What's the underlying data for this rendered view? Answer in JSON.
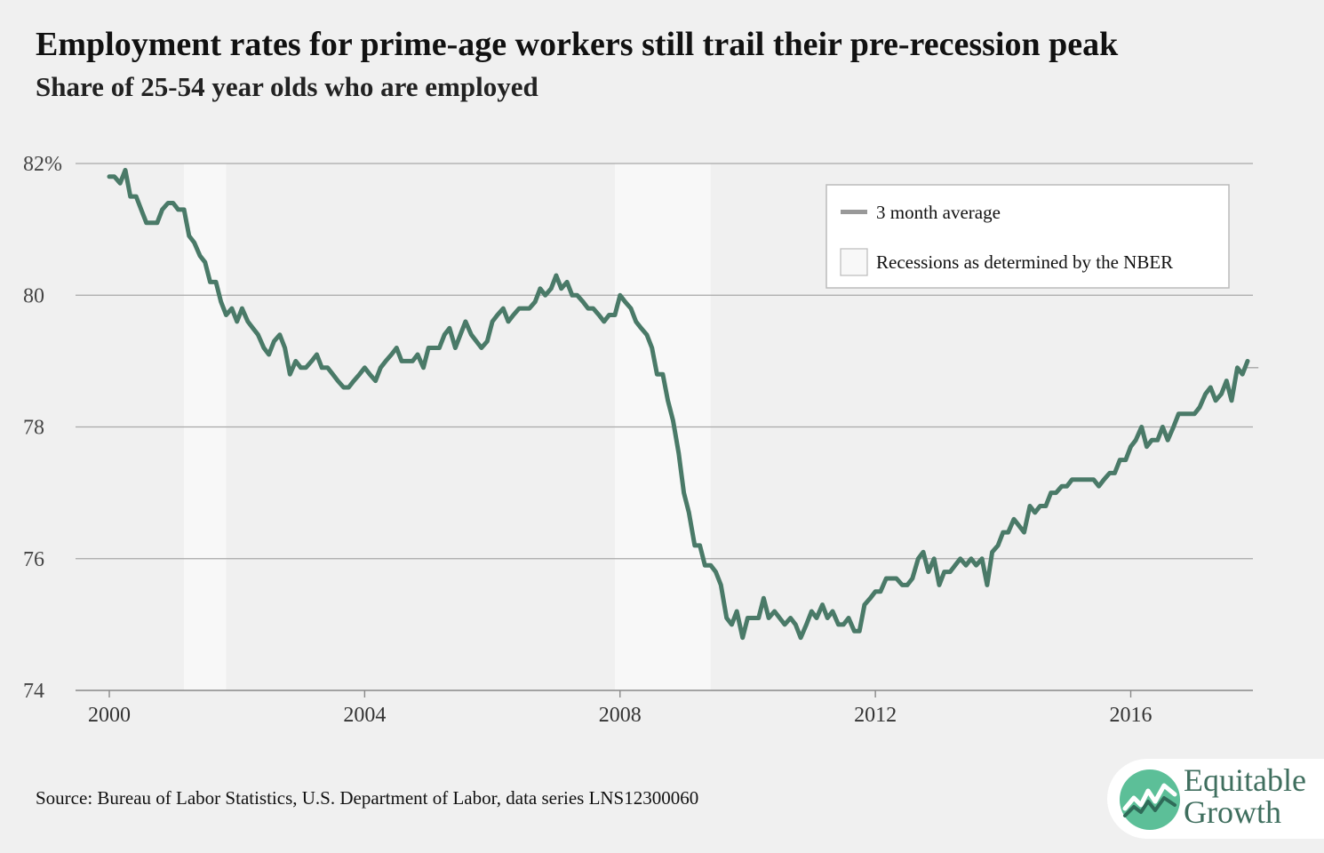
{
  "header": {
    "title": "Employment rates for prime-age workers still trail their pre-recession peak",
    "subtitle": "Share of 25-54 year olds who are employed"
  },
  "footer": {
    "source": "Source: Bureau of Labor Statistics, U.S. Department of Labor, data series LNS12300060"
  },
  "logo": {
    "line1": "Equitable",
    "line2": "Growth"
  },
  "colors": {
    "series": "#4a7a68",
    "recession": "#f8f8f8",
    "grid": "#a8a8a8",
    "background": "#f0f0f0",
    "logo": "#3f6e5e"
  },
  "chart_data": {
    "type": "line",
    "title": "Employment rates for prime-age workers still trail their pre-recession peak",
    "subtitle": "Share of 25-54 year olds who are employed",
    "xlabel": "",
    "ylabel": "",
    "xlim": [
      2000,
      2018
    ],
    "ylim": [
      74,
      82
    ],
    "y_ticks": [
      74,
      76,
      78,
      80,
      82
    ],
    "y_tick_labels": [
      "74",
      "76",
      "78",
      "80",
      "82%"
    ],
    "x_ticks": [
      2000,
      2004,
      2008,
      2012,
      2016
    ],
    "x_tick_labels": [
      "2000",
      "2004",
      "2008",
      "2012",
      "2016"
    ],
    "grid": "horizontal",
    "legend": {
      "placement": "top-right",
      "entries": [
        "3 month average",
        "Recessions as determined by the NBER"
      ]
    },
    "recessions": [
      {
        "start": 2001.17,
        "end": 2001.83
      },
      {
        "start": 2007.92,
        "end": 2009.42
      }
    ],
    "reference_line": {
      "y": 78.9,
      "x_start": 2017.8
    },
    "series": [
      {
        "name": "3 month average",
        "points": [
          [
            2000.0,
            81.8
          ],
          [
            2000.08,
            81.8
          ],
          [
            2000.17,
            81.7
          ],
          [
            2000.25,
            81.9
          ],
          [
            2000.33,
            81.5
          ],
          [
            2000.42,
            81.5
          ],
          [
            2000.5,
            81.3
          ],
          [
            2000.58,
            81.1
          ],
          [
            2000.67,
            81.1
          ],
          [
            2000.75,
            81.1
          ],
          [
            2000.83,
            81.3
          ],
          [
            2000.92,
            81.4
          ],
          [
            2001.0,
            81.4
          ],
          [
            2001.08,
            81.3
          ],
          [
            2001.17,
            81.3
          ],
          [
            2001.25,
            80.9
          ],
          [
            2001.33,
            80.8
          ],
          [
            2001.42,
            80.6
          ],
          [
            2001.5,
            80.5
          ],
          [
            2001.58,
            80.2
          ],
          [
            2001.67,
            80.2
          ],
          [
            2001.75,
            79.9
          ],
          [
            2001.83,
            79.7
          ],
          [
            2001.92,
            79.8
          ],
          [
            2002.0,
            79.6
          ],
          [
            2002.08,
            79.8
          ],
          [
            2002.17,
            79.6
          ],
          [
            2002.25,
            79.5
          ],
          [
            2002.33,
            79.4
          ],
          [
            2002.42,
            79.2
          ],
          [
            2002.5,
            79.1
          ],
          [
            2002.58,
            79.3
          ],
          [
            2002.67,
            79.4
          ],
          [
            2002.75,
            79.2
          ],
          [
            2002.83,
            78.8
          ],
          [
            2002.92,
            79.0
          ],
          [
            2003.0,
            78.9
          ],
          [
            2003.08,
            78.9
          ],
          [
            2003.17,
            79.0
          ],
          [
            2003.25,
            79.1
          ],
          [
            2003.33,
            78.9
          ],
          [
            2003.42,
            78.9
          ],
          [
            2003.5,
            78.8
          ],
          [
            2003.58,
            78.7
          ],
          [
            2003.67,
            78.6
          ],
          [
            2003.75,
            78.6
          ],
          [
            2003.83,
            78.7
          ],
          [
            2003.92,
            78.8
          ],
          [
            2004.0,
            78.9
          ],
          [
            2004.08,
            78.8
          ],
          [
            2004.17,
            78.7
          ],
          [
            2004.25,
            78.9
          ],
          [
            2004.33,
            79.0
          ],
          [
            2004.42,
            79.1
          ],
          [
            2004.5,
            79.2
          ],
          [
            2004.58,
            79.0
          ],
          [
            2004.67,
            79.0
          ],
          [
            2004.75,
            79.0
          ],
          [
            2004.83,
            79.1
          ],
          [
            2004.92,
            78.9
          ],
          [
            2005.0,
            79.2
          ],
          [
            2005.08,
            79.2
          ],
          [
            2005.17,
            79.2
          ],
          [
            2005.25,
            79.4
          ],
          [
            2005.33,
            79.5
          ],
          [
            2005.42,
            79.2
          ],
          [
            2005.5,
            79.4
          ],
          [
            2005.58,
            79.6
          ],
          [
            2005.67,
            79.4
          ],
          [
            2005.75,
            79.3
          ],
          [
            2005.83,
            79.2
          ],
          [
            2005.92,
            79.3
          ],
          [
            2006.0,
            79.6
          ],
          [
            2006.08,
            79.7
          ],
          [
            2006.17,
            79.8
          ],
          [
            2006.25,
            79.6
          ],
          [
            2006.33,
            79.7
          ],
          [
            2006.42,
            79.8
          ],
          [
            2006.5,
            79.8
          ],
          [
            2006.58,
            79.8
          ],
          [
            2006.67,
            79.9
          ],
          [
            2006.75,
            80.1
          ],
          [
            2006.83,
            80.0
          ],
          [
            2006.92,
            80.1
          ],
          [
            2007.0,
            80.3
          ],
          [
            2007.08,
            80.1
          ],
          [
            2007.17,
            80.2
          ],
          [
            2007.25,
            80.0
          ],
          [
            2007.33,
            80.0
          ],
          [
            2007.42,
            79.9
          ],
          [
            2007.5,
            79.8
          ],
          [
            2007.58,
            79.8
          ],
          [
            2007.67,
            79.7
          ],
          [
            2007.75,
            79.6
          ],
          [
            2007.83,
            79.7
          ],
          [
            2007.92,
            79.7
          ],
          [
            2008.0,
            80.0
          ],
          [
            2008.08,
            79.9
          ],
          [
            2008.17,
            79.8
          ],
          [
            2008.25,
            79.6
          ],
          [
            2008.33,
            79.5
          ],
          [
            2008.42,
            79.4
          ],
          [
            2008.5,
            79.2
          ],
          [
            2008.58,
            78.8
          ],
          [
            2008.67,
            78.8
          ],
          [
            2008.75,
            78.4
          ],
          [
            2008.83,
            78.1
          ],
          [
            2008.92,
            77.6
          ],
          [
            2009.0,
            77.0
          ],
          [
            2009.08,
            76.7
          ],
          [
            2009.17,
            76.2
          ],
          [
            2009.25,
            76.2
          ],
          [
            2009.33,
            75.9
          ],
          [
            2009.42,
            75.9
          ],
          [
            2009.5,
            75.8
          ],
          [
            2009.58,
            75.6
          ],
          [
            2009.67,
            75.1
          ],
          [
            2009.75,
            75.0
          ],
          [
            2009.83,
            75.2
          ],
          [
            2009.92,
            74.8
          ],
          [
            2010.0,
            75.1
          ],
          [
            2010.08,
            75.1
          ],
          [
            2010.17,
            75.1
          ],
          [
            2010.25,
            75.4
          ],
          [
            2010.33,
            75.1
          ],
          [
            2010.42,
            75.2
          ],
          [
            2010.5,
            75.1
          ],
          [
            2010.58,
            75.0
          ],
          [
            2010.67,
            75.1
          ],
          [
            2010.75,
            75.0
          ],
          [
            2010.83,
            74.8
          ],
          [
            2010.92,
            75.0
          ],
          [
            2011.0,
            75.2
          ],
          [
            2011.08,
            75.1
          ],
          [
            2011.17,
            75.3
          ],
          [
            2011.25,
            75.1
          ],
          [
            2011.33,
            75.2
          ],
          [
            2011.42,
            75.0
          ],
          [
            2011.5,
            75.0
          ],
          [
            2011.58,
            75.1
          ],
          [
            2011.67,
            74.9
          ],
          [
            2011.75,
            74.9
          ],
          [
            2011.83,
            75.3
          ],
          [
            2011.92,
            75.4
          ],
          [
            2012.0,
            75.5
          ],
          [
            2012.08,
            75.5
          ],
          [
            2012.17,
            75.7
          ],
          [
            2012.25,
            75.7
          ],
          [
            2012.33,
            75.7
          ],
          [
            2012.42,
            75.6
          ],
          [
            2012.5,
            75.6
          ],
          [
            2012.58,
            75.7
          ],
          [
            2012.67,
            76.0
          ],
          [
            2012.75,
            76.1
          ],
          [
            2012.83,
            75.8
          ],
          [
            2012.92,
            76.0
          ],
          [
            2013.0,
            75.6
          ],
          [
            2013.08,
            75.8
          ],
          [
            2013.17,
            75.8
          ],
          [
            2013.25,
            75.9
          ],
          [
            2013.33,
            76.0
          ],
          [
            2013.42,
            75.9
          ],
          [
            2013.5,
            76.0
          ],
          [
            2013.58,
            75.9
          ],
          [
            2013.67,
            76.0
          ],
          [
            2013.75,
            75.6
          ],
          [
            2013.83,
            76.1
          ],
          [
            2013.92,
            76.2
          ],
          [
            2014.0,
            76.4
          ],
          [
            2014.08,
            76.4
          ],
          [
            2014.17,
            76.6
          ],
          [
            2014.25,
            76.5
          ],
          [
            2014.33,
            76.4
          ],
          [
            2014.42,
            76.8
          ],
          [
            2014.5,
            76.7
          ],
          [
            2014.58,
            76.8
          ],
          [
            2014.67,
            76.8
          ],
          [
            2014.75,
            77.0
          ],
          [
            2014.83,
            77.0
          ],
          [
            2014.92,
            77.1
          ],
          [
            2015.0,
            77.1
          ],
          [
            2015.08,
            77.2
          ],
          [
            2015.17,
            77.2
          ],
          [
            2015.25,
            77.2
          ],
          [
            2015.33,
            77.2
          ],
          [
            2015.42,
            77.2
          ],
          [
            2015.5,
            77.1
          ],
          [
            2015.58,
            77.2
          ],
          [
            2015.67,
            77.3
          ],
          [
            2015.75,
            77.3
          ],
          [
            2015.83,
            77.5
          ],
          [
            2015.92,
            77.5
          ],
          [
            2016.0,
            77.7
          ],
          [
            2016.08,
            77.8
          ],
          [
            2016.17,
            78.0
          ],
          [
            2016.25,
            77.7
          ],
          [
            2016.33,
            77.8
          ],
          [
            2016.42,
            77.8
          ],
          [
            2016.5,
            78.0
          ],
          [
            2016.58,
            77.8
          ],
          [
            2016.67,
            78.0
          ],
          [
            2016.75,
            78.2
          ],
          [
            2016.83,
            78.2
          ],
          [
            2016.92,
            78.2
          ],
          [
            2017.0,
            78.2
          ],
          [
            2017.08,
            78.3
          ],
          [
            2017.17,
            78.5
          ],
          [
            2017.25,
            78.6
          ],
          [
            2017.33,
            78.4
          ],
          [
            2017.42,
            78.5
          ],
          [
            2017.5,
            78.7
          ],
          [
            2017.58,
            78.4
          ],
          [
            2017.67,
            78.9
          ],
          [
            2017.75,
            78.8
          ],
          [
            2017.83,
            79.0
          ]
        ]
      }
    ]
  }
}
